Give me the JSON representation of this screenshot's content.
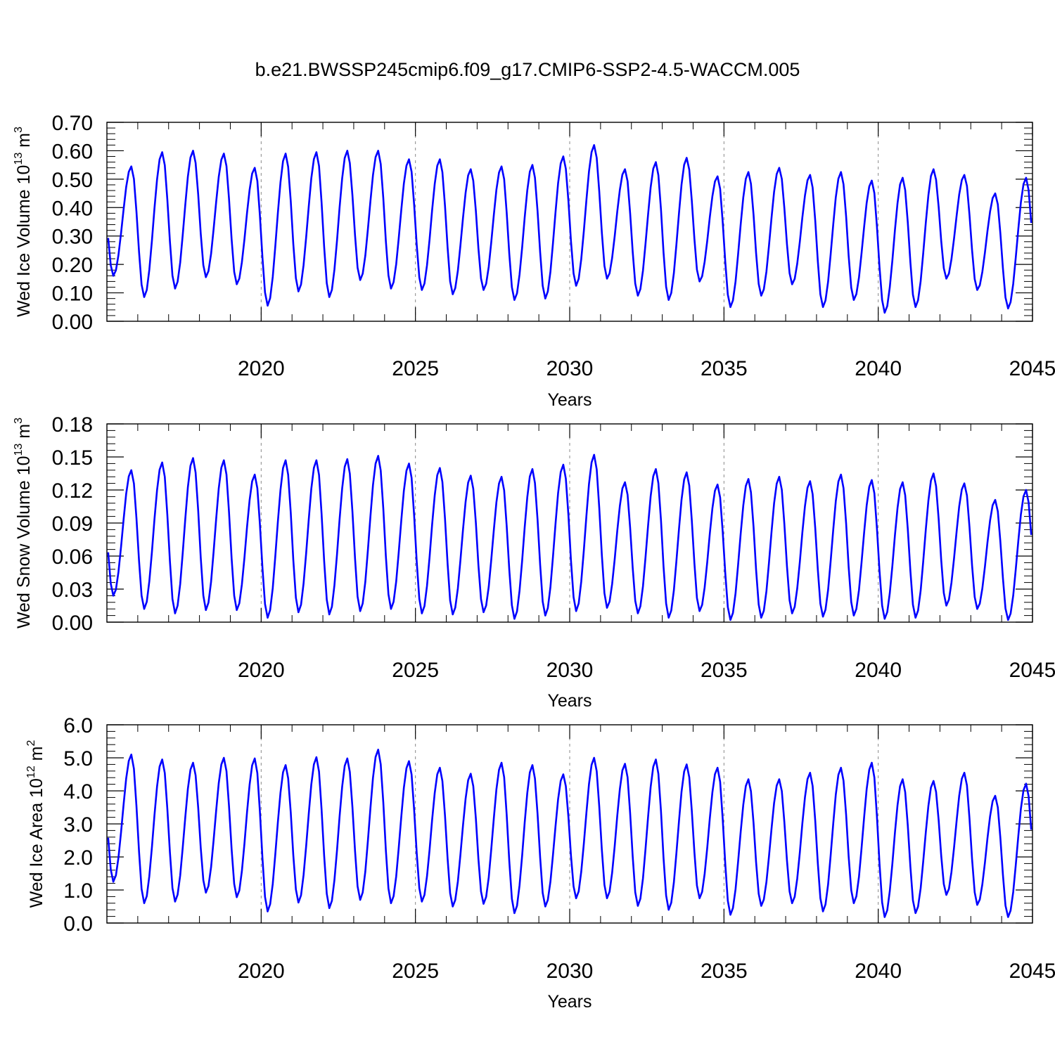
{
  "figure": {
    "title": "b.e21.BWSSP245cmip6.f09_g17.CMIP6-SSP2-4.5-WACCM.005"
  },
  "chart_data": [
    {
      "type": "line",
      "name": "ice-volume",
      "ylabel_main": "Wed Ice Volume 10",
      "ylabel_exp": "13",
      "ylabel_unit": " m",
      "ylabel_unit_exp": "3",
      "xlabel": "Years",
      "xlim": [
        2015.0,
        2045.0
      ],
      "ylim": [
        0.0,
        0.7
      ],
      "yticks": [
        "0.00",
        "0.10",
        "0.20",
        "0.30",
        "0.40",
        "0.50",
        "0.60",
        "0.70"
      ],
      "yticks_values": [
        0.0,
        0.1,
        0.2,
        0.3,
        0.4,
        0.5,
        0.6,
        0.7
      ],
      "xticks": [
        "2020",
        "2025",
        "2030",
        "2035",
        "2040",
        "2045"
      ],
      "xticks_values": [
        2020,
        2025,
        2030,
        2035,
        2040,
        2045
      ],
      "grid": "vertical dashed at labeled years",
      "line_color": "#0000ff",
      "season_min_month": 2,
      "season_max_month": 9,
      "annual_max": [
        0.545,
        0.595,
        0.6,
        0.59,
        0.54,
        0.59,
        0.595,
        0.6,
        0.6,
        0.57,
        0.57,
        0.535,
        0.545,
        0.55,
        0.58,
        0.62,
        0.535,
        0.56,
        0.575,
        0.51,
        0.525,
        0.54,
        0.515,
        0.525,
        0.495,
        0.505,
        0.535,
        0.515,
        0.45,
        0.505
      ],
      "annual_min": [
        0.16,
        0.085,
        0.115,
        0.155,
        0.13,
        0.055,
        0.105,
        0.085,
        0.145,
        0.115,
        0.11,
        0.095,
        0.11,
        0.075,
        0.08,
        0.125,
        0.15,
        0.09,
        0.075,
        0.14,
        0.05,
        0.09,
        0.13,
        0.05,
        0.075,
        0.03,
        0.05,
        0.15,
        0.11,
        0.045
      ]
    },
    {
      "type": "line",
      "name": "snow-volume",
      "ylabel_main": "Wed Snow Volume 10",
      "ylabel_exp": "13",
      "ylabel_unit": " m",
      "ylabel_unit_exp": "3",
      "xlabel": "Years",
      "xlim": [
        2015.0,
        2045.0
      ],
      "ylim": [
        0.0,
        0.18
      ],
      "yticks": [
        "0.00",
        "0.03",
        "0.06",
        "0.09",
        "0.12",
        "0.15",
        "0.18"
      ],
      "yticks_values": [
        0.0,
        0.03,
        0.06,
        0.09,
        0.12,
        0.15,
        0.18
      ],
      "xticks": [
        "2020",
        "2025",
        "2030",
        "2035",
        "2040",
        "2045"
      ],
      "xticks_values": [
        2020,
        2025,
        2030,
        2035,
        2040,
        2045
      ],
      "grid": "vertical dashed at labeled years",
      "line_color": "#0000ff",
      "season_min_month": 2,
      "season_max_month": 9,
      "annual_max": [
        0.138,
        0.145,
        0.149,
        0.147,
        0.134,
        0.147,
        0.147,
        0.148,
        0.151,
        0.144,
        0.14,
        0.133,
        0.132,
        0.139,
        0.143,
        0.152,
        0.127,
        0.139,
        0.136,
        0.125,
        0.13,
        0.132,
        0.128,
        0.134,
        0.129,
        0.127,
        0.135,
        0.126,
        0.111,
        0.12
      ],
      "annual_min": [
        0.024,
        0.012,
        0.008,
        0.011,
        0.011,
        0.004,
        0.009,
        0.007,
        0.01,
        0.012,
        0.008,
        0.007,
        0.009,
        0.003,
        0.006,
        0.01,
        0.013,
        0.008,
        0.004,
        0.01,
        0.002,
        0.004,
        0.008,
        0.005,
        0.006,
        0.003,
        0.004,
        0.015,
        0.012,
        0.002
      ]
    },
    {
      "type": "line",
      "name": "ice-area",
      "ylabel_main": "Wed Ice Area 10",
      "ylabel_exp": "12",
      "ylabel_unit": " m",
      "ylabel_unit_exp": "2",
      "xlabel": "Years",
      "xlim": [
        2015.0,
        2045.0
      ],
      "ylim": [
        0.0,
        6.0
      ],
      "yticks": [
        "0.0",
        "1.0",
        "2.0",
        "3.0",
        "4.0",
        "5.0",
        "6.0"
      ],
      "yticks_values": [
        0,
        1,
        2,
        3,
        4,
        5,
        6
      ],
      "xticks": [
        "2020",
        "2025",
        "2030",
        "2035",
        "2040",
        "2045"
      ],
      "xticks_values": [
        2020,
        2025,
        2030,
        2035,
        2040,
        2045
      ],
      "grid": "vertical dashed at labeled years",
      "line_color": "#0000ff",
      "season_min_month": 2,
      "season_max_month": 9,
      "annual_max": [
        5.1,
        4.95,
        4.85,
        5.0,
        4.98,
        4.78,
        5.02,
        4.98,
        5.25,
        4.9,
        4.7,
        4.52,
        4.85,
        4.78,
        4.5,
        5.0,
        4.82,
        4.95,
        4.8,
        4.7,
        4.35,
        4.35,
        4.55,
        4.7,
        4.85,
        4.35,
        4.3,
        4.55,
        3.85,
        4.22
      ],
      "annual_min": [
        1.25,
        0.6,
        0.65,
        0.92,
        0.78,
        0.35,
        0.62,
        0.45,
        0.7,
        0.6,
        0.65,
        0.5,
        0.58,
        0.3,
        0.5,
        0.75,
        0.75,
        0.52,
        0.4,
        0.75,
        0.25,
        0.52,
        0.6,
        0.35,
        0.6,
        0.18,
        0.3,
        0.85,
        0.55,
        0.18
      ]
    }
  ]
}
